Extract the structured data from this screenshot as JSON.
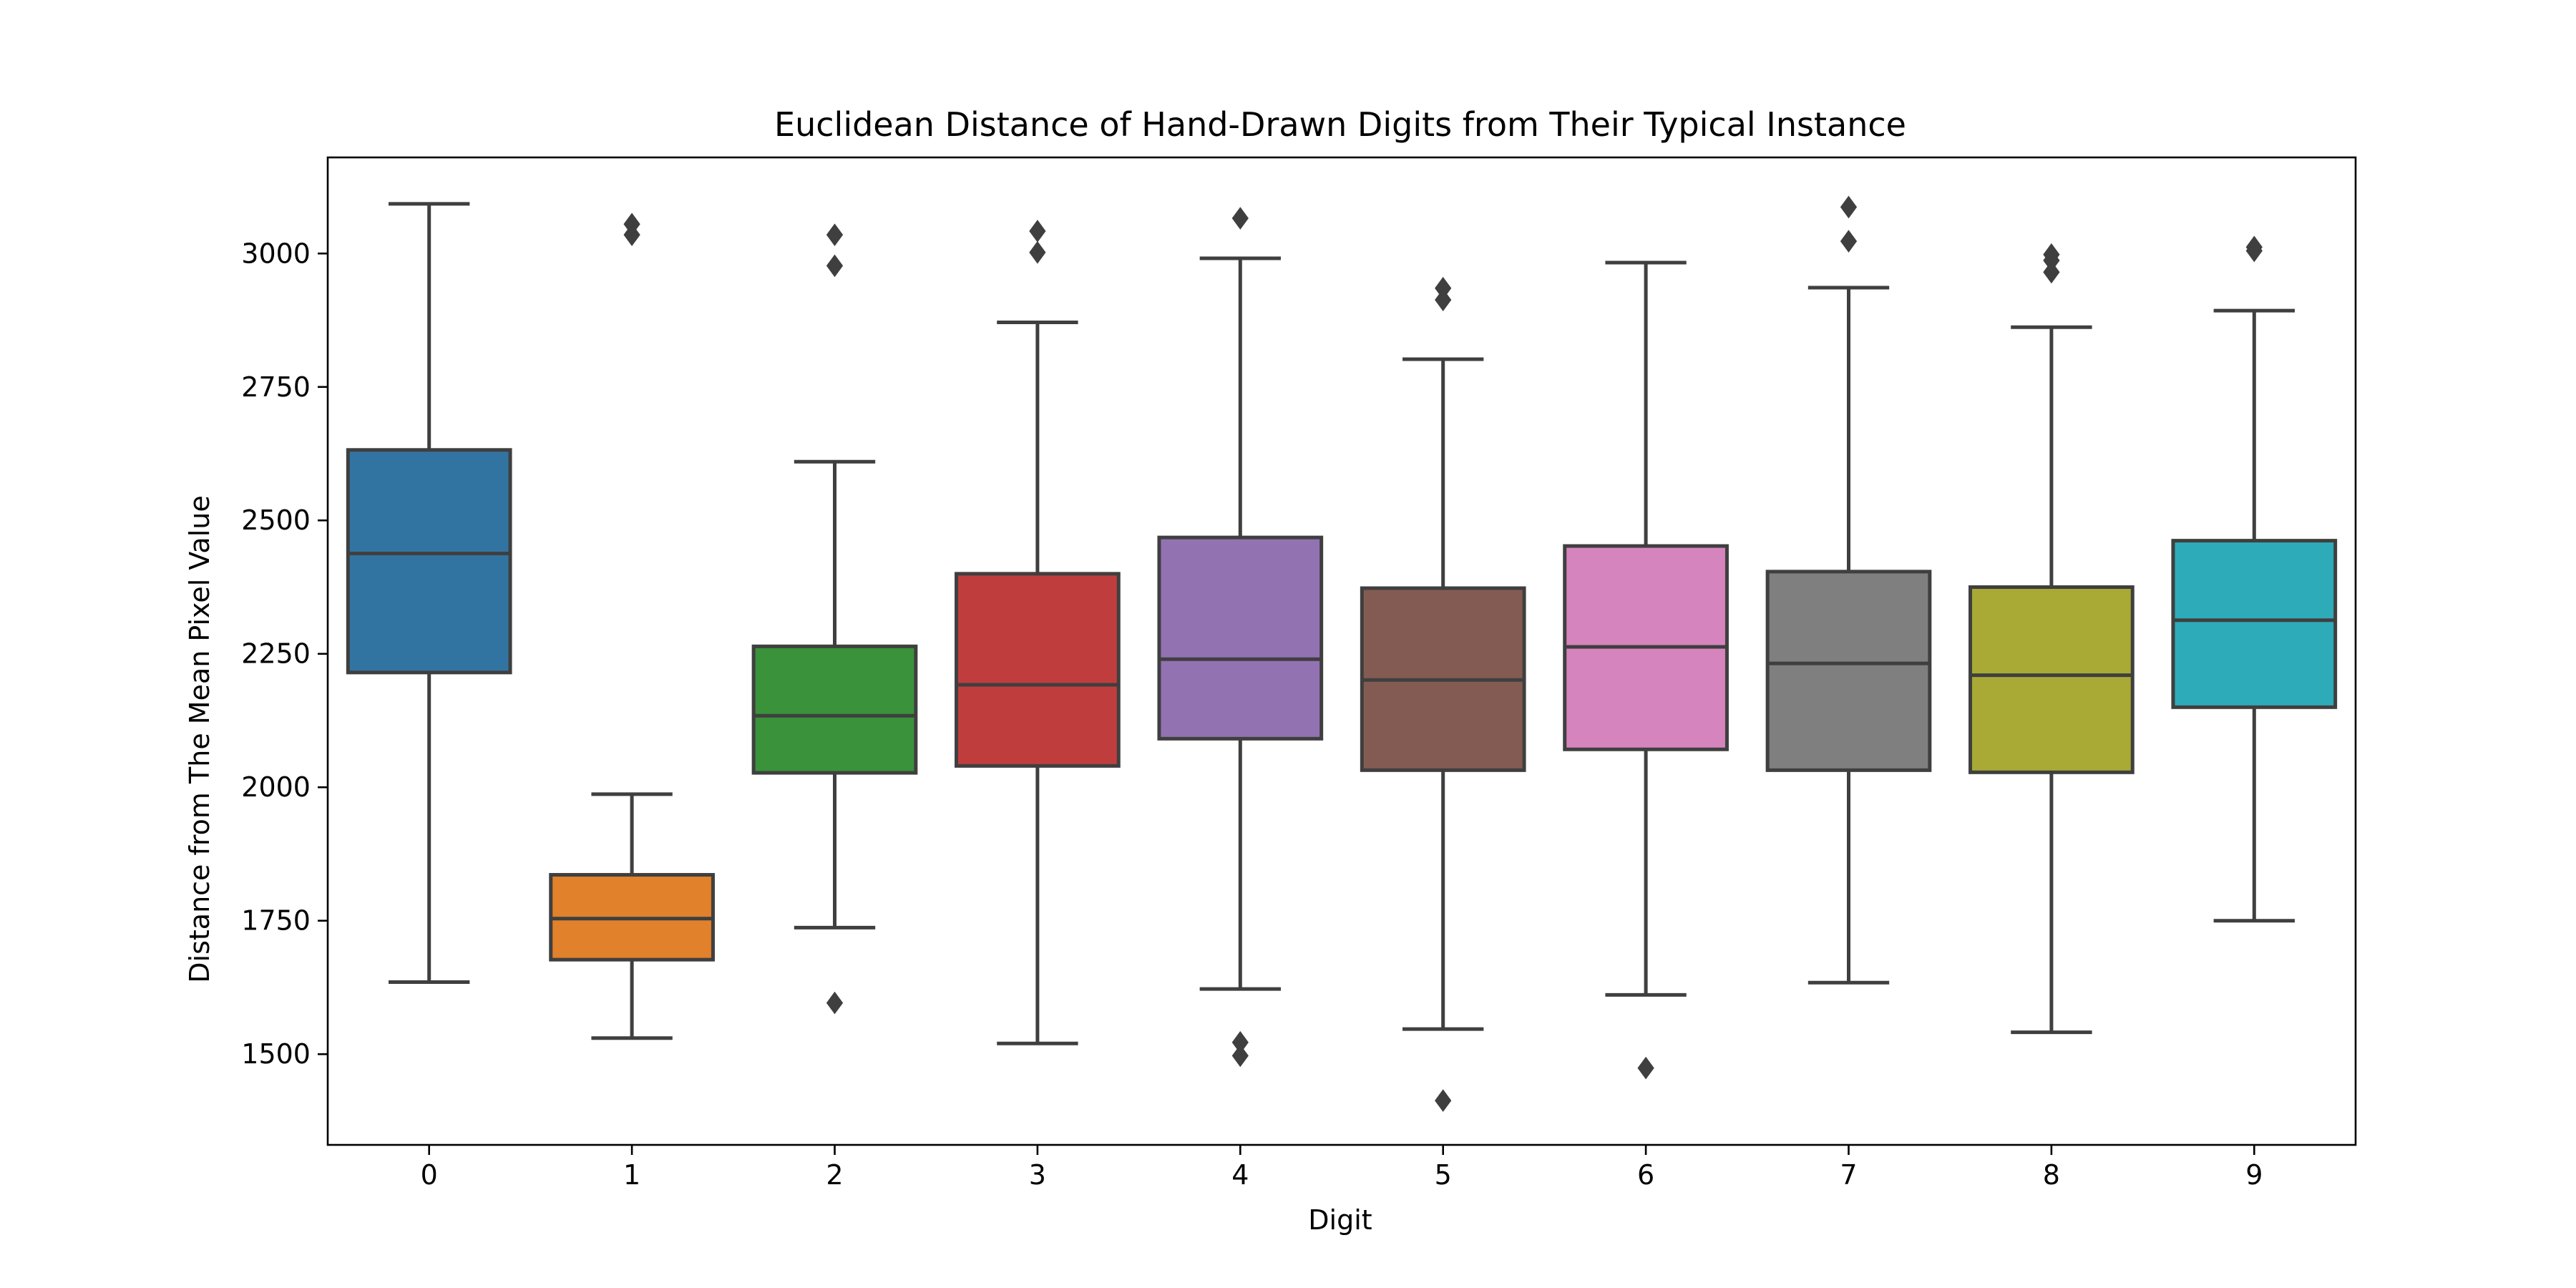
{
  "chart_data": {
    "type": "boxplot",
    "title": "Euclidean Distance of Hand-Drawn Digits from Their Typical Instance",
    "xlabel": "Digit",
    "ylabel": "Distance from The Mean Pixel Value",
    "ylim": [
      1330,
      3180
    ],
    "yticks": [
      1500,
      1750,
      2000,
      2250,
      2500,
      2750,
      3000
    ],
    "grid": false,
    "categories": [
      "0",
      "1",
      "2",
      "3",
      "4",
      "5",
      "6",
      "7",
      "8",
      "9"
    ],
    "colors": [
      "#3274a1",
      "#e1812c",
      "#3a923a",
      "#c03d3e",
      "#9372b2",
      "#845b53",
      "#d684bd",
      "#7f7f7f",
      "#a9aa35",
      "#2eabb8"
    ],
    "edge_color": "#3f3f3f",
    "boxes": [
      {
        "label": "0",
        "whislo": 1635,
        "q1": 2215,
        "med": 2438,
        "q3": 2632,
        "whishi": 3093,
        "fliers": []
      },
      {
        "label": "1",
        "whislo": 1530,
        "q1": 1677,
        "med": 1754,
        "q3": 1836,
        "whishi": 1987,
        "fliers": [
          3035,
          3055
        ]
      },
      {
        "label": "2",
        "whislo": 1737,
        "q1": 2027,
        "med": 2134,
        "q3": 2264,
        "whishi": 2610,
        "fliers": [
          1596,
          2977,
          3035
        ]
      },
      {
        "label": "3",
        "whislo": 1520,
        "q1": 2040,
        "med": 2192,
        "q3": 2400,
        "whishi": 2871,
        "fliers": [
          3002,
          3042
        ]
      },
      {
        "label": "4",
        "whislo": 1622,
        "q1": 2091,
        "med": 2240,
        "q3": 2468,
        "whishi": 2991,
        "fliers": [
          1497,
          1522,
          3066
        ]
      },
      {
        "label": "5",
        "whislo": 1547,
        "q1": 2032,
        "med": 2201,
        "q3": 2373,
        "whishi": 2802,
        "fliers": [
          1413,
          2913,
          2935
        ]
      },
      {
        "label": "6",
        "whislo": 1611,
        "q1": 2071,
        "med": 2263,
        "q3": 2452,
        "whishi": 2983,
        "fliers": [
          1474
        ]
      },
      {
        "label": "7",
        "whislo": 1634,
        "q1": 2032,
        "med": 2232,
        "q3": 2404,
        "whishi": 2936,
        "fliers": [
          3023,
          3087
        ]
      },
      {
        "label": "8",
        "whislo": 1541,
        "q1": 2028,
        "med": 2210,
        "q3": 2375,
        "whishi": 2862,
        "fliers": [
          2965,
          2987,
          2998
        ]
      },
      {
        "label": "9",
        "whislo": 1750,
        "q1": 2150,
        "med": 2313,
        "q3": 2462,
        "whishi": 2893,
        "fliers": [
          3005,
          3012
        ]
      }
    ]
  }
}
